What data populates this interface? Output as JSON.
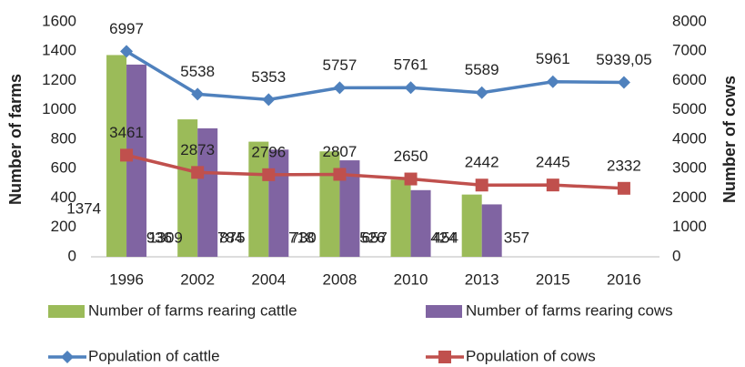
{
  "chart_data": {
    "type": "combo",
    "categories": [
      "1996",
      "2002",
      "2004",
      "2008",
      "2010",
      "2013",
      "2015",
      "2016"
    ],
    "ylabel": "Number of farms",
    "y2label": "Number of cows",
    "ylim": [
      0,
      1600
    ],
    "yticks": [
      0,
      200,
      400,
      600,
      800,
      1000,
      1200,
      1400,
      1600
    ],
    "y2lim": [
      0,
      8000
    ],
    "y2ticks": [
      0,
      1000,
      2000,
      3000,
      4000,
      5000,
      6000,
      7000,
      8000
    ],
    "grid": false,
    "series": [
      {
        "name": "Number of farms rearing cattle",
        "type": "bar",
        "color": "#9bbb59",
        "values": [
          1374,
          936,
          784,
          718,
          526,
          424,
          null,
          null
        ]
      },
      {
        "name": "Number of farms rearing cows",
        "type": "bar",
        "color": "#8064a2",
        "values": [
          1309,
          875,
          730,
          657,
          454,
          357,
          null,
          null
        ]
      },
      {
        "name": "Population of cattle",
        "type": "line",
        "marker": "diamond",
        "axis": "y2",
        "color": "#4f81bd",
        "values": [
          6997,
          5538,
          5353,
          5757,
          5761,
          5589,
          5961,
          5939.05
        ],
        "value_labels": [
          "6997",
          "5538",
          "5353",
          "5757",
          "5761",
          "5589",
          "5961",
          "5939,05"
        ]
      },
      {
        "name": "Population of cows",
        "type": "line",
        "marker": "square",
        "axis": "y2",
        "color": "#c0504d",
        "values": [
          3461,
          2873,
          2796,
          2807,
          2650,
          2442,
          2445,
          2332
        ]
      }
    ]
  }
}
